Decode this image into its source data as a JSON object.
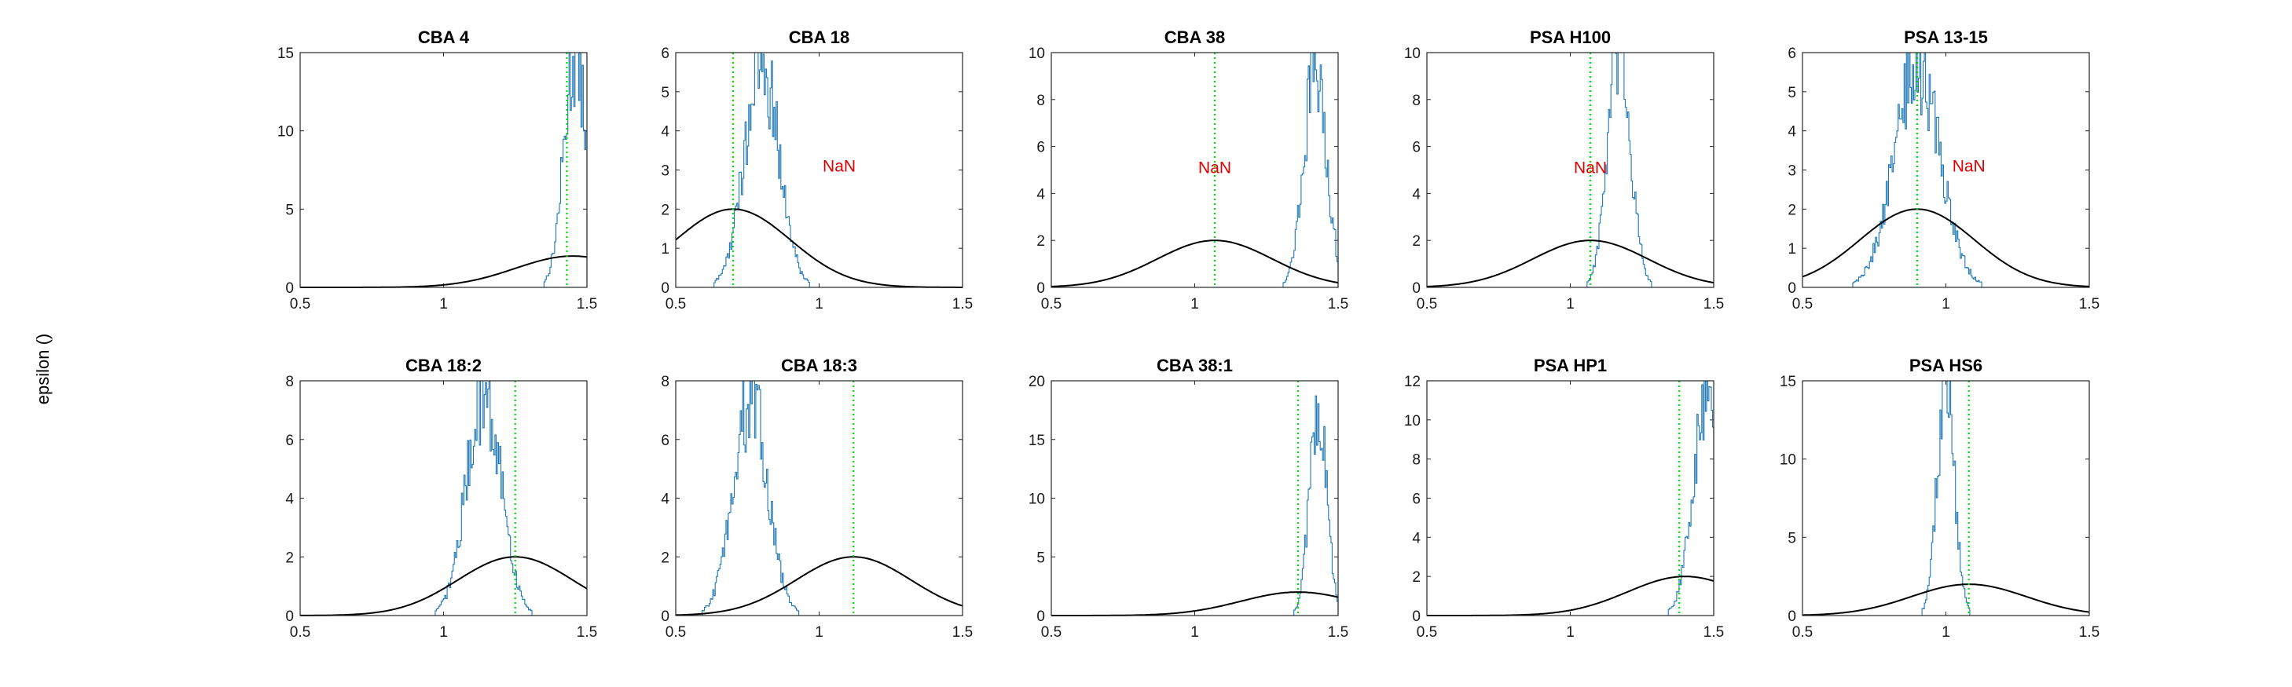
{
  "figure": {
    "ylabel": "epsilon ()",
    "colors": {
      "histogram": "#1f77b4",
      "prior_curve": "#000000",
      "marker_line": "#00dd00",
      "annotation": "#e00000"
    }
  },
  "chart_data": [
    {
      "type": "histogram",
      "title": "CBA 4",
      "xlim": [
        0.5,
        1.5
      ],
      "ylim": [
        0,
        15
      ],
      "xticks": [
        "0.5",
        "1",
        "1.5"
      ],
      "yticks": [
        "0",
        "5",
        "10",
        "15"
      ],
      "histogram": {
        "mean": 1.46,
        "sd": 0.04,
        "peak": 14.8
      },
      "prior_curve": {
        "mean": 1.45,
        "sd": 0.2,
        "peak": 2.0
      },
      "marker_x": 1.43,
      "annotation": null
    },
    {
      "type": "histogram",
      "title": "CBA 18",
      "xlim": [
        0.5,
        1.5
      ],
      "ylim": [
        0,
        6
      ],
      "xticks": [
        "0.5",
        "1",
        "1.5"
      ],
      "yticks": [
        "0",
        "1",
        "2",
        "3",
        "4",
        "5",
        "6"
      ],
      "histogram": {
        "mean": 0.8,
        "sd": 0.06,
        "peak": 5.7
      },
      "prior_curve": {
        "mean": 0.7,
        "sd": 0.2,
        "peak": 2.0
      },
      "marker_x": 0.7,
      "annotation": {
        "text": "NaN",
        "x": 1.07,
        "y": 3.1
      }
    },
    {
      "type": "histogram",
      "title": "CBA 38",
      "xlim": [
        0.5,
        1.5
      ],
      "ylim": [
        0,
        10
      ],
      "xticks": [
        "0.5",
        "1",
        "1.5"
      ],
      "yticks": [
        "0",
        "2",
        "4",
        "6",
        "8",
        "10"
      ],
      "histogram": {
        "mean": 1.42,
        "sd": 0.04,
        "peak": 9.2
      },
      "prior_curve": {
        "mean": 1.07,
        "sd": 0.2,
        "peak": 2.0
      },
      "marker_x": 1.07,
      "annotation": {
        "text": "NaN",
        "x": 1.07,
        "y": 5.1
      }
    },
    {
      "type": "histogram",
      "title": "PSA H100",
      "xlim": [
        0.5,
        1.5
      ],
      "ylim": [
        0,
        10
      ],
      "xticks": [
        "0.5",
        "1",
        "1.5"
      ],
      "yticks": [
        "0",
        "2",
        "4",
        "6",
        "8",
        "10"
      ],
      "histogram": {
        "mean": 1.17,
        "sd": 0.04,
        "peak": 10.0
      },
      "prior_curve": {
        "mean": 1.07,
        "sd": 0.2,
        "peak": 2.0
      },
      "marker_x": 1.07,
      "annotation": {
        "text": "NaN",
        "x": 1.07,
        "y": 5.1
      }
    },
    {
      "type": "histogram",
      "title": "PSA 13-15",
      "xlim": [
        0.5,
        1.5
      ],
      "ylim": [
        0,
        6
      ],
      "xticks": [
        "0.5",
        "1",
        "1.5"
      ],
      "yticks": [
        "0",
        "1",
        "2",
        "3",
        "4",
        "5",
        "6"
      ],
      "histogram": {
        "mean": 0.9,
        "sd": 0.08,
        "peak": 5.6
      },
      "prior_curve": {
        "mean": 0.9,
        "sd": 0.2,
        "peak": 2.0
      },
      "marker_x": 0.9,
      "annotation": {
        "text": "NaN",
        "x": 1.08,
        "y": 3.1
      }
    },
    {
      "type": "histogram",
      "title": "CBA 18:2",
      "xlim": [
        0.5,
        1.5
      ],
      "ylim": [
        0,
        8
      ],
      "xticks": [
        "0.5",
        "1",
        "1.5"
      ],
      "yticks": [
        "0",
        "2",
        "4",
        "6",
        "8"
      ],
      "histogram": {
        "mean": 1.14,
        "sd": 0.06,
        "peak": 7.6
      },
      "prior_curve": {
        "mean": 1.25,
        "sd": 0.2,
        "peak": 2.0
      },
      "marker_x": 1.25,
      "annotation": null
    },
    {
      "type": "histogram",
      "title": "CBA 18:3",
      "xlim": [
        0.5,
        1.5
      ],
      "ylim": [
        0,
        8
      ],
      "xticks": [
        "0.5",
        "1",
        "1.5"
      ],
      "yticks": [
        "0",
        "2",
        "4",
        "6",
        "8"
      ],
      "histogram": {
        "mean": 0.76,
        "sd": 0.06,
        "peak": 7.4
      },
      "prior_curve": {
        "mean": 1.12,
        "sd": 0.2,
        "peak": 2.0
      },
      "marker_x": 1.12,
      "annotation": null
    },
    {
      "type": "histogram",
      "title": "CBA 38:1",
      "xlim": [
        0.5,
        1.5
      ],
      "ylim": [
        0,
        20
      ],
      "xticks": [
        "0.5",
        "1",
        "1.5"
      ],
      "yticks": [
        "0",
        "5",
        "10",
        "15",
        "20"
      ],
      "histogram": {
        "mean": 1.43,
        "sd": 0.03,
        "peak": 17.8
      },
      "prior_curve": {
        "mean": 1.36,
        "sd": 0.2,
        "peak": 2.0
      },
      "marker_x": 1.36,
      "annotation": null
    },
    {
      "type": "histogram",
      "title": "PSA HP1",
      "xlim": [
        0.5,
        1.5
      ],
      "ylim": [
        0,
        12
      ],
      "xticks": [
        "0.5",
        "1",
        "1.5"
      ],
      "yticks": [
        "0",
        "2",
        "4",
        "6",
        "8",
        "10",
        "12"
      ],
      "histogram": {
        "mean": 1.48,
        "sd": 0.05,
        "peak": 11.3
      },
      "prior_curve": {
        "mean": 1.4,
        "sd": 0.2,
        "peak": 2.0
      },
      "marker_x": 1.38,
      "annotation": null
    },
    {
      "type": "histogram",
      "title": "PSA HS6",
      "xlim": [
        0.5,
        1.5
      ],
      "ylim": [
        0,
        15
      ],
      "xticks": [
        "0.5",
        "1",
        "1.5"
      ],
      "yticks": [
        "0",
        "5",
        "10",
        "15"
      ],
      "histogram": {
        "mean": 1.0,
        "sd": 0.03,
        "peak": 15.0
      },
      "prior_curve": {
        "mean": 1.08,
        "sd": 0.2,
        "peak": 2.0
      },
      "marker_x": 1.08,
      "annotation": null
    }
  ]
}
